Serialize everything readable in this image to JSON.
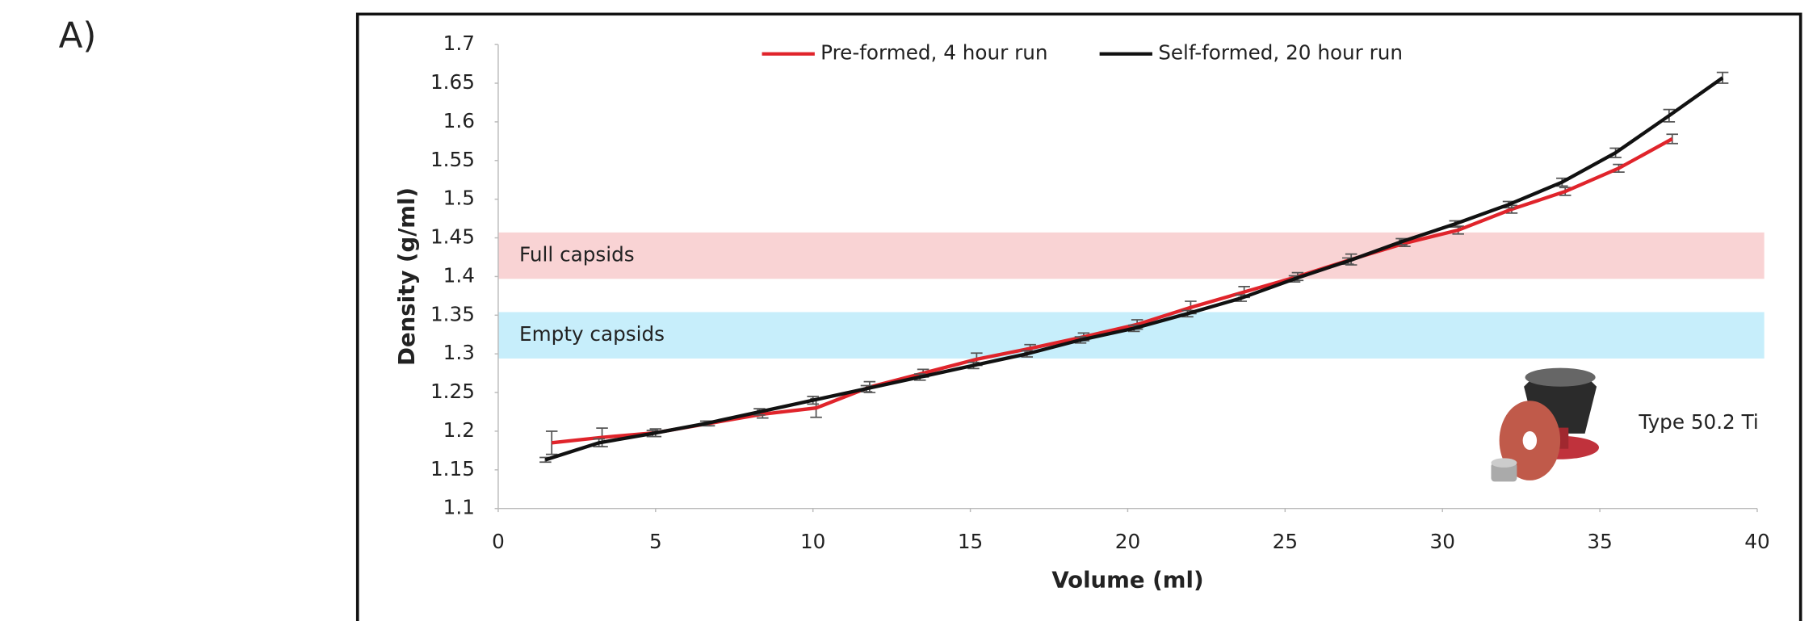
{
  "panel_label": "A)",
  "chart_data": {
    "type": "line",
    "xlabel": "Volume (ml)",
    "ylabel": "Density (g/ml)",
    "xlim": [
      0,
      40
    ],
    "xticks": [
      0,
      5,
      10,
      15,
      20,
      25,
      30,
      35,
      40
    ],
    "ylim": [
      1.1,
      1.7
    ],
    "yticks": [
      1.1,
      1.15,
      1.2,
      1.25,
      1.3,
      1.35,
      1.4,
      1.45,
      1.5,
      1.55,
      1.6,
      1.65,
      1.7
    ],
    "grid": false,
    "legend": "top",
    "bands": [
      {
        "label": "Full capsids",
        "range": [
          1.397,
          1.457
        ],
        "color": "#f9d3d4"
      },
      {
        "label": "Empty capsids",
        "range": [
          1.294,
          1.354
        ],
        "color": "#c7eefb"
      }
    ],
    "annotation": "Type 50.2 Ti",
    "series": [
      {
        "name": "Pre-formed, 4 hour run",
        "color": "#e0242b",
        "x": [
          1.7,
          3.3,
          5,
          6.7,
          8.4,
          10.1,
          11.8,
          13.5,
          15.2,
          16.9,
          18.6,
          20.3,
          22,
          23.7,
          25.4,
          27.1,
          28.8,
          30.5,
          32.2,
          33.9,
          35.6,
          37.3
        ],
        "values": [
          1.185,
          1.192,
          1.198,
          1.21,
          1.222,
          1.23,
          1.257,
          1.275,
          1.293,
          1.307,
          1.322,
          1.338,
          1.36,
          1.38,
          1.4,
          1.422,
          1.443,
          1.46,
          1.487,
          1.51,
          1.54,
          1.578
        ],
        "errors": [
          0.015,
          0.012,
          0.005,
          0.003,
          0.005,
          0.012,
          0.007,
          0.005,
          0.008,
          0.005,
          0.005,
          0.006,
          0.008,
          0.007,
          0.005,
          0.007,
          0.004,
          0.005,
          0.005,
          0.005,
          0.005,
          0.006
        ]
      },
      {
        "name": "Self-formed, 20 hour run",
        "color": "#111111",
        "x": [
          1.5,
          3.2,
          4.9,
          6.6,
          8.3,
          10,
          11.7,
          13.4,
          15.1,
          16.8,
          18.5,
          20.2,
          21.9,
          23.6,
          25.3,
          27,
          28.7,
          30.4,
          32.1,
          33.8,
          35.5,
          37.2,
          38.9
        ],
        "values": [
          1.163,
          1.185,
          1.197,
          1.21,
          1.225,
          1.24,
          1.255,
          1.27,
          1.285,
          1.3,
          1.318,
          1.333,
          1.352,
          1.372,
          1.397,
          1.42,
          1.445,
          1.468,
          1.493,
          1.522,
          1.56,
          1.608,
          1.657
        ],
        "errors": [
          0.003,
          0.005,
          0.004,
          0.003,
          0.004,
          0.005,
          0.004,
          0.004,
          0.004,
          0.004,
          0.004,
          0.004,
          0.004,
          0.004,
          0.004,
          0.004,
          0.004,
          0.004,
          0.004,
          0.005,
          0.006,
          0.008,
          0.007
        ]
      }
    ]
  }
}
